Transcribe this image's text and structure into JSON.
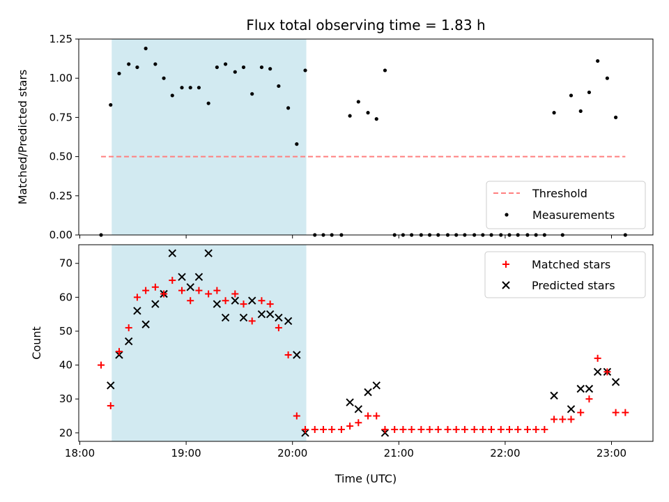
{
  "figure": {
    "title": "Flux total observing time = 1.83 h",
    "xlabel": "Time (UTC)"
  },
  "colors": {
    "shade": "#add8e6",
    "threshold": "#ff7f7f",
    "matched": "#ff0000",
    "predicted": "#000000",
    "measurements": "#000000"
  },
  "chart_data": [
    {
      "type": "scatter",
      "ylabel": "Matched/Predicted stars",
      "x_axis": "time_hours_utc",
      "xlim": [
        17.99,
        23.39
      ],
      "ylim": [
        0,
        1.25
      ],
      "yticks": [
        "0.00",
        "0.25",
        "0.50",
        "0.75",
        "1.00",
        "1.25"
      ],
      "shaded_interval": [
        18.3,
        20.13
      ],
      "threshold": {
        "name": "Threshold",
        "value": 0.5,
        "x_range": [
          18.2,
          23.13
        ]
      },
      "legend": {
        "placement": "lower-right",
        "entries": [
          "Threshold",
          "Measurements"
        ]
      },
      "series": [
        {
          "name": "Measurements",
          "points": [
            [
              18.2,
              0.0
            ],
            [
              18.29,
              0.83
            ],
            [
              18.37,
              1.03
            ],
            [
              18.46,
              1.09
            ],
            [
              18.54,
              1.07
            ],
            [
              18.62,
              1.19
            ],
            [
              18.71,
              1.09
            ],
            [
              18.79,
              1.0
            ],
            [
              18.87,
              0.89
            ],
            [
              18.96,
              0.94
            ],
            [
              19.04,
              0.94
            ],
            [
              19.12,
              0.94
            ],
            [
              19.21,
              0.84
            ],
            [
              19.29,
              1.07
            ],
            [
              19.37,
              1.09
            ],
            [
              19.46,
              1.04
            ],
            [
              19.54,
              1.07
            ],
            [
              19.62,
              0.9
            ],
            [
              19.71,
              1.07
            ],
            [
              19.79,
              1.06
            ],
            [
              19.87,
              0.95
            ],
            [
              19.96,
              0.81
            ],
            [
              20.04,
              0.58
            ],
            [
              20.12,
              1.05
            ],
            [
              20.21,
              0.0
            ],
            [
              20.29,
              0.0
            ],
            [
              20.37,
              0.0
            ],
            [
              20.46,
              0.0
            ],
            [
              20.54,
              0.76
            ],
            [
              20.62,
              0.85
            ],
            [
              20.71,
              0.78
            ],
            [
              20.79,
              0.74
            ],
            [
              20.87,
              1.05
            ],
            [
              20.96,
              0.0
            ],
            [
              21.04,
              0.0
            ],
            [
              21.12,
              0.0
            ],
            [
              21.21,
              0.0
            ],
            [
              21.29,
              0.0
            ],
            [
              21.37,
              0.0
            ],
            [
              21.46,
              0.0
            ],
            [
              21.54,
              0.0
            ],
            [
              21.62,
              0.0
            ],
            [
              21.71,
              0.0
            ],
            [
              21.79,
              0.0
            ],
            [
              21.87,
              0.0
            ],
            [
              21.96,
              0.0
            ],
            [
              22.04,
              0.0
            ],
            [
              22.12,
              0.0
            ],
            [
              22.21,
              0.0
            ],
            [
              22.29,
              0.0
            ],
            [
              22.37,
              0.0
            ],
            [
              22.46,
              0.78
            ],
            [
              22.54,
              0.0
            ],
            [
              22.62,
              0.89
            ],
            [
              22.71,
              0.79
            ],
            [
              22.79,
              0.91
            ],
            [
              22.87,
              1.11
            ],
            [
              22.96,
              1.0
            ],
            [
              23.04,
              0.75
            ],
            [
              23.13,
              0.0
            ]
          ]
        }
      ]
    },
    {
      "type": "scatter",
      "ylabel": "Count",
      "xlabel": "Time (UTC)",
      "x_axis": "time_hours_utc",
      "xlim": [
        17.99,
        23.39
      ],
      "ylim": [
        17.5,
        75.5
      ],
      "xticks": [
        {
          "value": 18,
          "label": "18:00"
        },
        {
          "value": 19,
          "label": "19:00"
        },
        {
          "value": 20,
          "label": "20:00"
        },
        {
          "value": 21,
          "label": "21:00"
        },
        {
          "value": 22,
          "label": "22:00"
        },
        {
          "value": 23,
          "label": "23:00"
        }
      ],
      "yticks": [
        "20",
        "30",
        "40",
        "50",
        "60",
        "70"
      ],
      "shaded_interval": [
        18.3,
        20.13
      ],
      "legend": {
        "placement": "top-right",
        "entries": [
          "Matched stars",
          "Predicted stars"
        ]
      },
      "series": [
        {
          "name": "Matched stars",
          "marker": "plus",
          "points": [
            [
              18.2,
              40
            ],
            [
              18.29,
              28
            ],
            [
              18.37,
              44
            ],
            [
              18.46,
              51
            ],
            [
              18.54,
              60
            ],
            [
              18.62,
              62
            ],
            [
              18.71,
              63
            ],
            [
              18.79,
              61
            ],
            [
              18.87,
              65
            ],
            [
              18.96,
              62
            ],
            [
              19.04,
              59
            ],
            [
              19.12,
              62
            ],
            [
              19.21,
              61
            ],
            [
              19.29,
              62
            ],
            [
              19.37,
              59
            ],
            [
              19.46,
              61
            ],
            [
              19.54,
              58
            ],
            [
              19.62,
              53
            ],
            [
              19.71,
              59
            ],
            [
              19.79,
              58
            ],
            [
              19.87,
              51
            ],
            [
              19.96,
              43
            ],
            [
              20.04,
              25
            ],
            [
              20.12,
              21
            ],
            [
              20.21,
              21
            ],
            [
              20.29,
              21
            ],
            [
              20.37,
              21
            ],
            [
              20.46,
              21
            ],
            [
              20.54,
              22
            ],
            [
              20.62,
              23
            ],
            [
              20.71,
              25
            ],
            [
              20.79,
              25
            ],
            [
              20.87,
              21
            ],
            [
              20.96,
              21
            ],
            [
              21.04,
              21
            ],
            [
              21.12,
              21
            ],
            [
              21.21,
              21
            ],
            [
              21.29,
              21
            ],
            [
              21.37,
              21
            ],
            [
              21.46,
              21
            ],
            [
              21.54,
              21
            ],
            [
              21.62,
              21
            ],
            [
              21.71,
              21
            ],
            [
              21.79,
              21
            ],
            [
              21.87,
              21
            ],
            [
              21.96,
              21
            ],
            [
              22.04,
              21
            ],
            [
              22.12,
              21
            ],
            [
              22.21,
              21
            ],
            [
              22.29,
              21
            ],
            [
              22.37,
              21
            ],
            [
              22.46,
              24
            ],
            [
              22.54,
              24
            ],
            [
              22.62,
              24
            ],
            [
              22.71,
              26
            ],
            [
              22.79,
              30
            ],
            [
              22.87,
              42
            ],
            [
              22.96,
              38
            ],
            [
              23.04,
              26
            ],
            [
              23.13,
              26
            ]
          ]
        },
        {
          "name": "Predicted stars",
          "marker": "x",
          "points": [
            [
              18.29,
              34
            ],
            [
              18.37,
              43
            ],
            [
              18.46,
              47
            ],
            [
              18.54,
              56
            ],
            [
              18.62,
              52
            ],
            [
              18.71,
              58
            ],
            [
              18.79,
              61
            ],
            [
              18.87,
              73
            ],
            [
              18.96,
              66
            ],
            [
              19.04,
              63
            ],
            [
              19.12,
              66
            ],
            [
              19.21,
              73
            ],
            [
              19.29,
              58
            ],
            [
              19.37,
              54
            ],
            [
              19.46,
              59
            ],
            [
              19.54,
              54
            ],
            [
              19.62,
              59
            ],
            [
              19.71,
              55
            ],
            [
              19.79,
              55
            ],
            [
              19.87,
              54
            ],
            [
              19.96,
              53
            ],
            [
              20.04,
              43
            ],
            [
              20.12,
              20
            ],
            [
              20.54,
              29
            ],
            [
              20.62,
              27
            ],
            [
              20.71,
              32
            ],
            [
              20.79,
              34
            ],
            [
              20.87,
              20
            ],
            [
              22.46,
              31
            ],
            [
              22.62,
              27
            ],
            [
              22.71,
              33
            ],
            [
              22.79,
              33
            ],
            [
              22.87,
              38
            ],
            [
              22.96,
              38
            ],
            [
              23.04,
              35
            ]
          ]
        }
      ]
    }
  ]
}
